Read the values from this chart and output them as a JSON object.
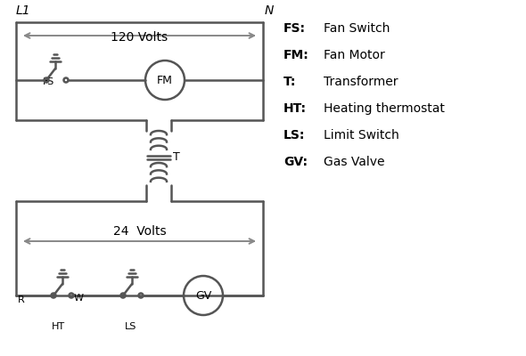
{
  "bg_color": "#ffffff",
  "line_color": "#555555",
  "text_color": "#000000",
  "legend": [
    [
      "FS:",
      "Fan Switch"
    ],
    [
      "FM:",
      "Fan Motor"
    ],
    [
      "T:",
      "Transformer"
    ],
    [
      "HT:",
      "Heating thermostat"
    ],
    [
      "LS:",
      "Limit Switch"
    ],
    [
      "GV:",
      "Gas Valve"
    ]
  ]
}
